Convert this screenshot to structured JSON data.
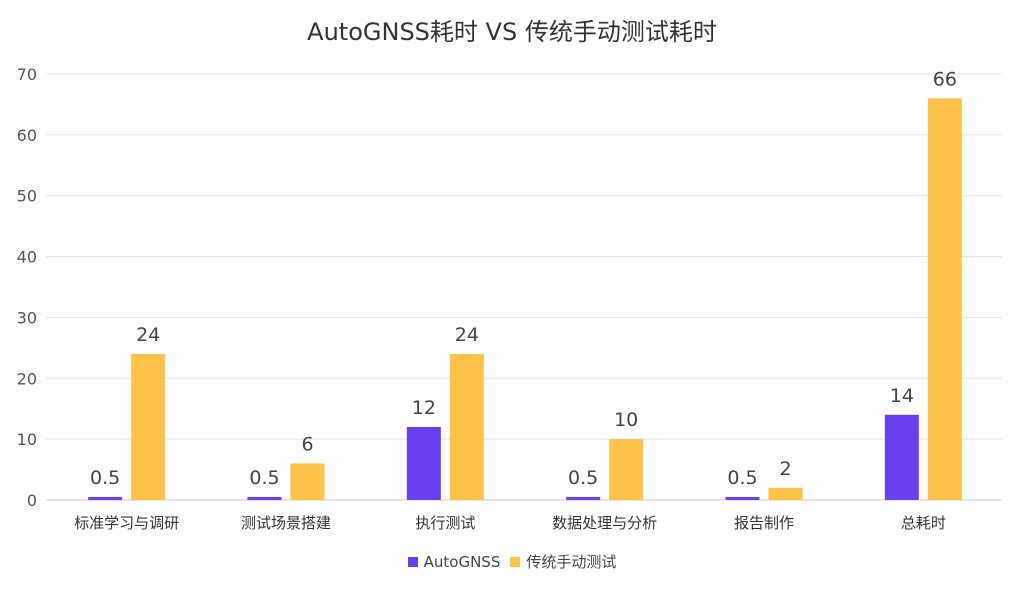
{
  "chart_data": {
    "type": "bar",
    "title": "AutoGNSS耗时 VS 传统手动测试耗时",
    "xlabel": "",
    "ylabel": "",
    "categories": [
      "标准学习与调研",
      "测试场景搭建",
      "执行测试",
      "数据处理与分析",
      "报告制作",
      "总耗时"
    ],
    "series": [
      {
        "name": "AutoGNSS",
        "values": [
          0.5,
          0.5,
          12,
          0.5,
          0.5,
          14
        ],
        "color": "#6a3ff0"
      },
      {
        "name": "传统手动测试",
        "values": [
          24,
          6,
          24,
          10,
          2,
          66
        ],
        "color": "#ffc24a"
      }
    ],
    "ylim": [
      0,
      70
    ],
    "yticks": [
      0,
      10,
      20,
      30,
      40,
      50,
      60,
      70
    ],
    "grid": true,
    "legend": "bottom-center",
    "data_labels": true
  }
}
